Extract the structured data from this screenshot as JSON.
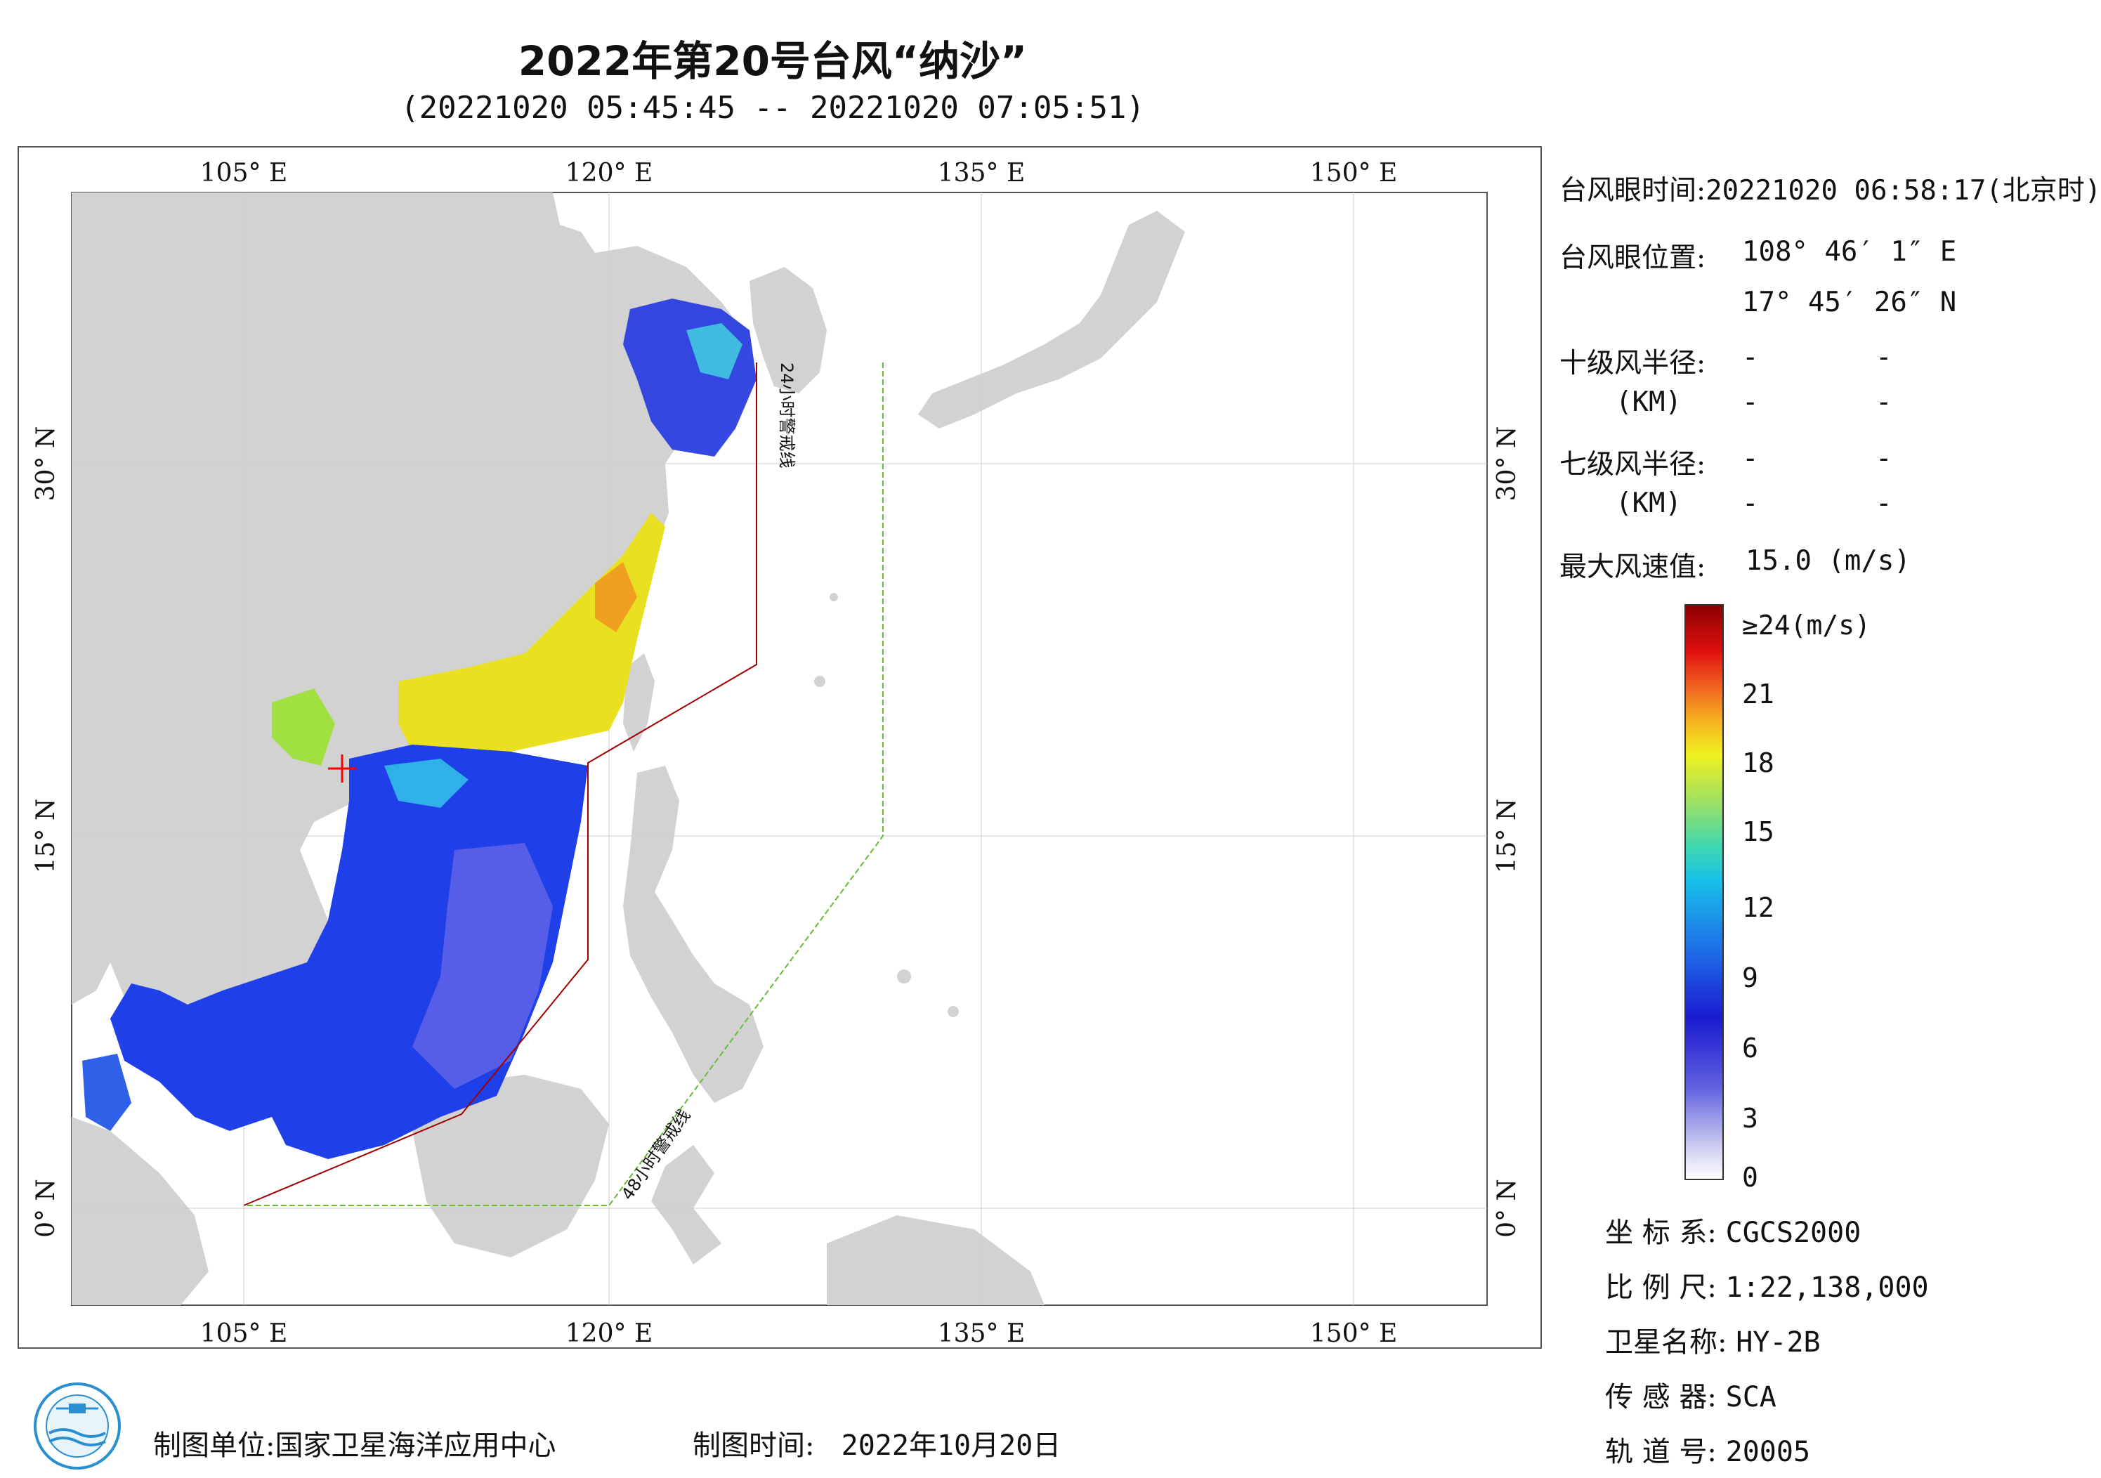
{
  "title": "2022年第20号台风“纳沙”",
  "subtitle": "(20221020 05:45:45 -- 20221020 07:05:51)",
  "map": {
    "top_lon_labels": [
      "105° E",
      "120° E",
      "135° E",
      "150° E"
    ],
    "bottom_lon_labels": [
      "105° E",
      "120° E",
      "135° E",
      "150° E"
    ],
    "left_lat_labels": [
      "30° N",
      "15° N",
      "0° N"
    ],
    "right_lat_labels": [
      "30° N",
      "15° N",
      "0° N"
    ],
    "line_24h_label": "24小时警戒线",
    "line_48h_label": "48小时警戒线",
    "colors": {
      "land": "#d2d2d2",
      "sea": "#ffffff",
      "line_24h": "#a00000",
      "line_48h": "#66bb33"
    }
  },
  "info": {
    "eye_time_label": "台风眼时间:",
    "eye_time_value": "20221020 06:58:17(北京时)",
    "eye_pos_label": "台风眼位置:",
    "eye_lon": "108° 46′ 1″ E",
    "eye_lat": "17° 45′ 26″ N",
    "r10_label": "十级风半径:",
    "r10_unit": "(KM)",
    "r10_values": [
      "-",
      "-",
      "-",
      "-"
    ],
    "r7_label": "七级风半径:",
    "r7_unit": "(KM)",
    "r7_values": [
      "-",
      "-",
      "-",
      "-"
    ],
    "max_wind_label": "最大风速值:",
    "max_wind_value": "15.0 (m/s)"
  },
  "colorbar": {
    "labels": [
      "≥24(m/s)",
      "21",
      "18",
      "15",
      "12",
      "9",
      "6",
      "3",
      "0"
    ]
  },
  "meta": {
    "crs_label": "坐 标 系:",
    "crs_value": "CGCS2000",
    "scale_label": "比 例 尺:",
    "scale_value": "1:22,138,000",
    "sat_label": "卫星名称:",
    "sat_value": "HY-2B",
    "sensor_label": "传 感 器:",
    "sensor_value": "SCA",
    "orbit_label": "轨 道 号:",
    "orbit_value": "20005"
  },
  "footer": {
    "maker_label": "制图单位:",
    "maker_value": "国家卫星海洋应用中心",
    "date_label": "制图时间:",
    "date_value": "2022年10月20日"
  }
}
